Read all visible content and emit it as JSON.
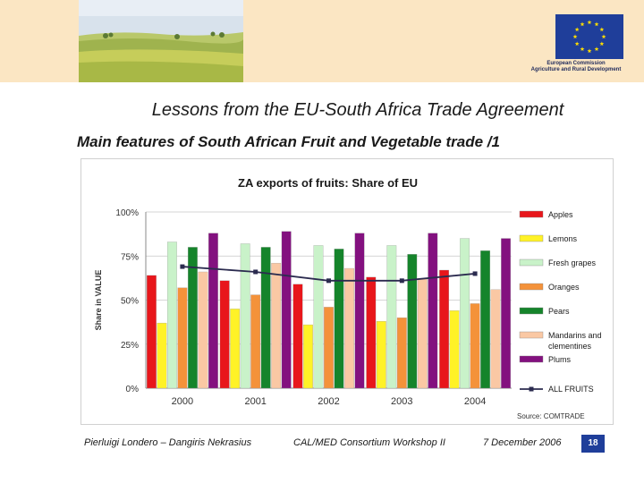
{
  "header": {
    "logo_caption_line1": "European Commission",
    "logo_caption_line2": "Agriculture and Rural Development"
  },
  "slide": {
    "title": "Lessons from the EU-South Africa Trade Agreement",
    "subtitle": "Main features of South African Fruit and Vegetable trade /1"
  },
  "chart_data": {
    "type": "bar",
    "title": "ZA exports of fruits: Share of EU",
    "ylabel": "Share in VALUE",
    "xlabel": "",
    "ylim": [
      0,
      100
    ],
    "yticks": [
      "0%",
      "25%",
      "50%",
      "75%",
      "100%"
    ],
    "grid": true,
    "legend_position": "right",
    "categories": [
      "2000",
      "2001",
      "2002",
      "2003",
      "2004"
    ],
    "series": [
      {
        "name": "Apples",
        "type": "bar",
        "color": "#e8161b",
        "values": [
          64,
          61,
          59,
          63,
          67
        ]
      },
      {
        "name": "Lemons",
        "type": "bar",
        "color": "#fff227",
        "values": [
          37,
          45,
          36,
          38,
          44
        ]
      },
      {
        "name": "Fresh grapes",
        "type": "bar",
        "color": "#c9f2c9",
        "values": [
          83,
          82,
          81,
          81,
          85
        ]
      },
      {
        "name": "Oranges",
        "type": "bar",
        "color": "#f4923a",
        "values": [
          57,
          53,
          46,
          40,
          48
        ]
      },
      {
        "name": "Pears",
        "type": "bar",
        "color": "#15842b",
        "values": [
          80,
          80,
          79,
          76,
          78
        ]
      },
      {
        "name": "Mandarins and clementines",
        "type": "bar",
        "color": "#fac8a4",
        "values": [
          66,
          71,
          68,
          62,
          56
        ]
      },
      {
        "name": "Plums",
        "type": "bar",
        "color": "#83117f",
        "values": [
          88,
          89,
          88,
          88,
          85
        ]
      },
      {
        "name": "ALL FRUITS",
        "type": "line",
        "color": "#2b2b4f",
        "values": [
          69,
          66,
          61,
          61,
          65
        ]
      }
    ],
    "source": "Source: COMTRADE"
  },
  "footer": {
    "authors": "Pierluigi Londero – Dangiris Nekrasius",
    "event": "CAL/MED Consortium Workshop II",
    "date": "7 December 2006",
    "page": "18"
  }
}
